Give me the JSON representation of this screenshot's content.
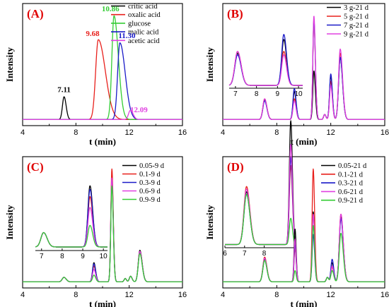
{
  "colors": {
    "black": "#000000",
    "red": "#e8201c",
    "green": "#33cc33",
    "blue": "#1a1ac8",
    "magenta": "#e040e0"
  },
  "chart_data": [
    {
      "id": "A",
      "type": "line",
      "panel_label": "(A)",
      "xlabel": "t (min)",
      "ylabel": "Intensity",
      "xlim": [
        4,
        16
      ],
      "xticks": [
        "4",
        "8",
        "12",
        "16"
      ],
      "legend_position": "top-right",
      "series": [
        {
          "name": "critic acid",
          "color": "#000000",
          "peaks": [
            {
              "t": 7.11,
              "h": 0.22,
              "w": 0.12,
              "tail": 0.1
            }
          ]
        },
        {
          "name": "oxalic acid",
          "color": "#e8201c",
          "peaks": [
            {
              "t": 9.68,
              "h": 0.77,
              "w": 0.2,
              "tail": 0.55
            }
          ]
        },
        {
          "name": "glucose",
          "color": "#33cc33",
          "peaks": [
            {
              "t": 10.86,
              "h": 1.0,
              "w": 0.16,
              "tail": 0.35
            }
          ]
        },
        {
          "name": "malic acid",
          "color": "#1a1ac8",
          "peaks": [
            {
              "t": 11.3,
              "h": 0.74,
              "w": 0.17,
              "tail": 0.45
            }
          ]
        },
        {
          "name": "acetic acid",
          "color": "#e040e0",
          "peaks": [
            {
              "t": 12.09,
              "h": 0.09,
              "w": 0.14,
              "tail": 0.15
            }
          ]
        }
      ],
      "annotations": [
        {
          "text": "7.11",
          "t": 7.11,
          "color": "#000000"
        },
        {
          "text": "9.68",
          "t": 9.68,
          "color": "#e8201c"
        },
        {
          "text": "10.86",
          "t": 10.86,
          "color": "#33cc33"
        },
        {
          "text": "11.30",
          "t": 11.3,
          "color": "#1a1ac8"
        },
        {
          "text": "12.09",
          "t": 12.09,
          "color": "#e040e0"
        }
      ]
    },
    {
      "id": "B",
      "type": "line",
      "panel_label": "(B)",
      "xlabel": "t (min)",
      "ylabel": "Intensity",
      "xlim": [
        4,
        16
      ],
      "xticks": [
        "4",
        "8",
        "12",
        "16"
      ],
      "legend_position": "top-right",
      "series": [
        {
          "name": "3 g-21 d",
          "color": "#000000",
          "peaks": [
            {
              "t": 7.1,
              "h": 0.19,
              "w": 0.13,
              "tail": 0.1
            },
            {
              "t": 9.3,
              "h": 0.27,
              "w": 0.1,
              "tail": 0.1
            },
            {
              "t": 10.75,
              "h": 0.47,
              "w": 0.08,
              "tail": 0.12
            },
            {
              "t": 11.55,
              "h": 0.05,
              "w": 0.08,
              "tail": 0.05
            },
            {
              "t": 12.0,
              "h": 0.42,
              "w": 0.09,
              "tail": 0.1
            },
            {
              "t": 12.7,
              "h": 0.6,
              "w": 0.12,
              "tail": 0.15
            }
          ]
        },
        {
          "name": "5 g-21 d",
          "color": "#e8201c",
          "peaks": [
            {
              "t": 7.1,
              "h": 0.2,
              "w": 0.13,
              "tail": 0.1
            },
            {
              "t": 9.3,
              "h": 0.2,
              "w": 0.1,
              "tail": 0.1
            },
            {
              "t": 10.75,
              "h": 0.95,
              "w": 0.08,
              "tail": 0.12
            },
            {
              "t": 11.55,
              "h": 0.05,
              "w": 0.08,
              "tail": 0.05
            },
            {
              "t": 12.0,
              "h": 0.37,
              "w": 0.09,
              "tail": 0.1
            },
            {
              "t": 12.7,
              "h": 0.64,
              "w": 0.12,
              "tail": 0.15
            }
          ]
        },
        {
          "name": "7 g-21 d",
          "color": "#1a1ac8",
          "peaks": [
            {
              "t": 7.1,
              "h": 0.18,
              "w": 0.13,
              "tail": 0.1
            },
            {
              "t": 9.3,
              "h": 0.3,
              "w": 0.1,
              "tail": 0.1
            },
            {
              "t": 10.75,
              "h": 0.96,
              "w": 0.08,
              "tail": 0.12
            },
            {
              "t": 11.55,
              "h": 0.05,
              "w": 0.08,
              "tail": 0.05
            },
            {
              "t": 12.0,
              "h": 0.44,
              "w": 0.09,
              "tail": 0.1
            },
            {
              "t": 12.7,
              "h": 0.6,
              "w": 0.12,
              "tail": 0.15
            }
          ]
        },
        {
          "name": "9 g-21 d",
          "color": "#e040e0",
          "peaks": [
            {
              "t": 7.1,
              "h": 0.2,
              "w": 0.13,
              "tail": 0.1
            },
            {
              "t": 9.3,
              "h": 0.18,
              "w": 0.1,
              "tail": 0.1
            },
            {
              "t": 10.75,
              "h": 1.0,
              "w": 0.08,
              "tail": 0.12
            },
            {
              "t": 11.55,
              "h": 0.05,
              "w": 0.08,
              "tail": 0.05
            },
            {
              "t": 12.0,
              "h": 0.33,
              "w": 0.09,
              "tail": 0.1
            },
            {
              "t": 12.7,
              "h": 0.68,
              "w": 0.12,
              "tail": 0.15
            }
          ]
        }
      ],
      "inset": {
        "xlim": [
          6.7,
          10.2
        ],
        "xticks": [
          "7",
          "8",
          "9",
          "10"
        ],
        "ymax": 0.34
      }
    },
    {
      "id": "C",
      "type": "line",
      "panel_label": "(C)",
      "xlabel": "t (min)",
      "ylabel": "Intensity",
      "xlim": [
        4,
        16
      ],
      "xticks": [
        "4",
        "8",
        "12",
        "16"
      ],
      "legend_position": "top-right",
      "series": [
        {
          "name": "0.05-9 d",
          "color": "#000000",
          "peaks": [
            {
              "t": 7.1,
              "h": 0.04,
              "w": 0.13,
              "tail": 0.1
            },
            {
              "t": 9.35,
              "h": 0.17,
              "w": 0.1,
              "tail": 0.1
            },
            {
              "t": 10.7,
              "h": 0.93,
              "w": 0.08,
              "tail": 0.1
            },
            {
              "t": 11.7,
              "h": 0.03,
              "w": 0.08,
              "tail": 0.05
            },
            {
              "t": 12.1,
              "h": 0.05,
              "w": 0.09,
              "tail": 0.1
            },
            {
              "t": 12.8,
              "h": 0.28,
              "w": 0.12,
              "tail": 0.15
            }
          ]
        },
        {
          "name": "0.1-9 d",
          "color": "#e8201c",
          "peaks": [
            {
              "t": 7.1,
              "h": 0.04,
              "w": 0.13,
              "tail": 0.1
            },
            {
              "t": 9.35,
              "h": 0.14,
              "w": 0.1,
              "tail": 0.1
            },
            {
              "t": 10.7,
              "h": 1.0,
              "w": 0.08,
              "tail": 0.1
            },
            {
              "t": 11.7,
              "h": 0.03,
              "w": 0.08,
              "tail": 0.05
            },
            {
              "t": 12.1,
              "h": 0.05,
              "w": 0.09,
              "tail": 0.1
            },
            {
              "t": 12.8,
              "h": 0.27,
              "w": 0.12,
              "tail": 0.15
            }
          ]
        },
        {
          "name": "0.3-9 d",
          "color": "#1a1ac8",
          "peaks": [
            {
              "t": 7.1,
              "h": 0.04,
              "w": 0.13,
              "tail": 0.1
            },
            {
              "t": 9.35,
              "h": 0.16,
              "w": 0.1,
              "tail": 0.1
            },
            {
              "t": 10.7,
              "h": 0.9,
              "w": 0.08,
              "tail": 0.1
            },
            {
              "t": 11.7,
              "h": 0.03,
              "w": 0.08,
              "tail": 0.05
            },
            {
              "t": 12.1,
              "h": 0.05,
              "w": 0.09,
              "tail": 0.1
            },
            {
              "t": 12.8,
              "h": 0.26,
              "w": 0.12,
              "tail": 0.15
            }
          ]
        },
        {
          "name": "0.6-9 d",
          "color": "#e040e0",
          "peaks": [
            {
              "t": 7.1,
              "h": 0.04,
              "w": 0.13,
              "tail": 0.1
            },
            {
              "t": 9.35,
              "h": 0.11,
              "w": 0.1,
              "tail": 0.1
            },
            {
              "t": 10.7,
              "h": 0.92,
              "w": 0.08,
              "tail": 0.1
            },
            {
              "t": 11.7,
              "h": 0.03,
              "w": 0.08,
              "tail": 0.05
            },
            {
              "t": 12.1,
              "h": 0.05,
              "w": 0.09,
              "tail": 0.1
            },
            {
              "t": 12.8,
              "h": 0.27,
              "w": 0.12,
              "tail": 0.15
            }
          ]
        },
        {
          "name": "0.9-9 d",
          "color": "#33cc33",
          "peaks": [
            {
              "t": 7.1,
              "h": 0.04,
              "w": 0.13,
              "tail": 0.1
            },
            {
              "t": 9.35,
              "h": 0.06,
              "w": 0.1,
              "tail": 0.1
            },
            {
              "t": 10.7,
              "h": 0.85,
              "w": 0.08,
              "tail": 0.1
            },
            {
              "t": 11.7,
              "h": 0.03,
              "w": 0.08,
              "tail": 0.05
            },
            {
              "t": 12.1,
              "h": 0.05,
              "w": 0.09,
              "tail": 0.1
            },
            {
              "t": 12.8,
              "h": 0.25,
              "w": 0.12,
              "tail": 0.15
            }
          ]
        }
      ],
      "inset": {
        "xlim": [
          6.7,
          10.2
        ],
        "xticks": [
          "7",
          "8",
          "9",
          "10"
        ],
        "ymax": 0.19
      }
    },
    {
      "id": "D",
      "type": "line",
      "panel_label": "(D)",
      "xlabel": "t (min)",
      "ylabel": "Intensity",
      "xlim": [
        4,
        16
      ],
      "xticks": [
        "4",
        "8",
        "12",
        "16"
      ],
      "legend_position": "top-right",
      "series": [
        {
          "name": "0.05-21 d",
          "color": "#000000",
          "peaks": [
            {
              "t": 7.1,
              "h": 0.2,
              "w": 0.13,
              "tail": 0.1
            },
            {
              "t": 9.35,
              "h": 0.47,
              "w": 0.07,
              "tail": 0.08
            },
            {
              "t": 10.7,
              "h": 0.62,
              "w": 0.08,
              "tail": 0.1
            },
            {
              "t": 11.75,
              "h": 0.04,
              "w": 0.08,
              "tail": 0.05
            },
            {
              "t": 12.1,
              "h": 0.17,
              "w": 0.09,
              "tail": 0.1
            },
            {
              "t": 12.75,
              "h": 0.58,
              "w": 0.12,
              "tail": 0.15
            }
          ]
        },
        {
          "name": "0.1-21 d",
          "color": "#e8201c",
          "peaks": [
            {
              "t": 7.1,
              "h": 0.22,
              "w": 0.13,
              "tail": 0.1
            },
            {
              "t": 9.35,
              "h": 0.3,
              "w": 0.07,
              "tail": 0.08
            },
            {
              "t": 10.7,
              "h": 1.0,
              "w": 0.08,
              "tail": 0.1
            },
            {
              "t": 11.75,
              "h": 0.04,
              "w": 0.08,
              "tail": 0.05
            },
            {
              "t": 12.1,
              "h": 0.13,
              "w": 0.09,
              "tail": 0.1
            },
            {
              "t": 12.75,
              "h": 0.6,
              "w": 0.12,
              "tail": 0.15
            }
          ]
        },
        {
          "name": "0.3-21 d",
          "color": "#1a1ac8",
          "peaks": [
            {
              "t": 7.1,
              "h": 0.19,
              "w": 0.13,
              "tail": 0.1
            },
            {
              "t": 9.35,
              "h": 0.33,
              "w": 0.07,
              "tail": 0.08
            },
            {
              "t": 10.7,
              "h": 0.42,
              "w": 0.08,
              "tail": 0.1
            },
            {
              "t": 11.75,
              "h": 0.04,
              "w": 0.08,
              "tail": 0.05
            },
            {
              "t": 12.1,
              "h": 0.2,
              "w": 0.09,
              "tail": 0.1
            },
            {
              "t": 12.75,
              "h": 0.56,
              "w": 0.12,
              "tail": 0.15
            }
          ]
        },
        {
          "name": "0.6-21 d",
          "color": "#e040e0",
          "peaks": [
            {
              "t": 7.1,
              "h": 0.21,
              "w": 0.13,
              "tail": 0.1
            },
            {
              "t": 9.35,
              "h": 0.38,
              "w": 0.07,
              "tail": 0.08
            },
            {
              "t": 10.7,
              "h": 0.6,
              "w": 0.08,
              "tail": 0.1
            },
            {
              "t": 11.75,
              "h": 0.04,
              "w": 0.08,
              "tail": 0.05
            },
            {
              "t": 12.1,
              "h": 0.14,
              "w": 0.09,
              "tail": 0.1
            },
            {
              "t": 12.75,
              "h": 0.6,
              "w": 0.12,
              "tail": 0.15
            }
          ]
        },
        {
          "name": "0.9-21 d",
          "color": "#33cc33",
          "peaks": [
            {
              "t": 7.1,
              "h": 0.19,
              "w": 0.13,
              "tail": 0.1
            },
            {
              "t": 9.35,
              "h": 0.1,
              "w": 0.07,
              "tail": 0.08
            },
            {
              "t": 10.7,
              "h": 0.5,
              "w": 0.08,
              "tail": 0.1
            },
            {
              "t": 11.75,
              "h": 0.04,
              "w": 0.08,
              "tail": 0.05
            },
            {
              "t": 12.1,
              "h": 0.1,
              "w": 0.09,
              "tail": 0.1
            },
            {
              "t": 12.75,
              "h": 0.43,
              "w": 0.12,
              "tail": 0.15
            }
          ]
        }
      ],
      "inset": {
        "xlim": [
          6.0,
          9.6
        ],
        "xticks": [
          "6",
          "7",
          "8"
        ],
        "ymax": 0.23
      }
    }
  ]
}
